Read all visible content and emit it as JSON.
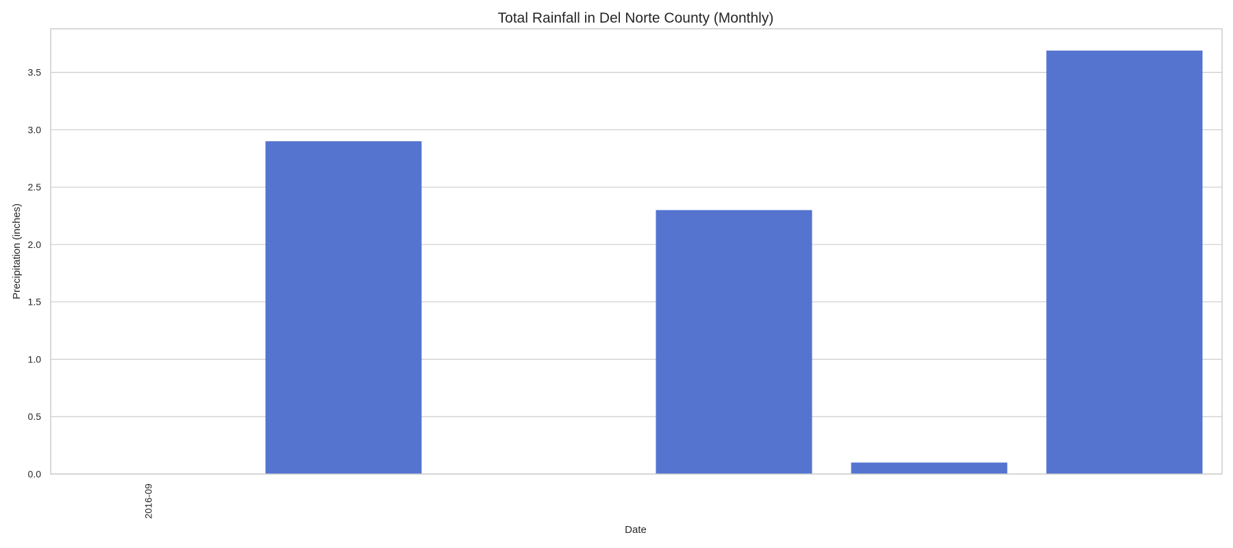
{
  "chart_data": {
    "type": "bar",
    "title": "Total Rainfall in Del Norte County (Monthly)",
    "xlabel": "Date",
    "ylabel": "Precipitation (inches)",
    "categories": [
      "2016-09",
      "",
      "",
      "",
      "",
      ""
    ],
    "values": [
      0.0,
      2.9,
      0.0,
      2.3,
      0.1,
      3.69
    ],
    "ylim": [
      0,
      3.88
    ],
    "yticks": [
      0.0,
      0.5,
      1.0,
      1.5,
      2.0,
      2.5,
      3.0,
      3.5
    ],
    "ytick_labels": [
      "0.0",
      "0.5",
      "1.0",
      "1.5",
      "2.0",
      "2.5",
      "3.0",
      "3.5"
    ],
    "bar_color": "#5574d0",
    "grid": "horizontal",
    "legend": "none"
  }
}
